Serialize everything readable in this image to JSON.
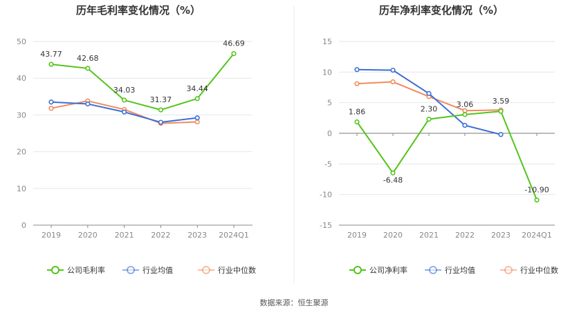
{
  "colors": {
    "company": "#52c41a",
    "industry_avg": "#3b6fd4",
    "industry_median": "#f08a5d"
  },
  "legend": {
    "industry_avg": "行业均值",
    "industry_median": "行业中位数"
  },
  "source": "数据来源：恒生聚源",
  "chart_data": [
    {
      "type": "line",
      "title": "历年毛利率变化情况（%）",
      "x": [
        "2019",
        "2020",
        "2021",
        "2022",
        "2023",
        "2024Q1"
      ],
      "ylim": [
        0,
        50
      ],
      "yticks": [
        0,
        10,
        20,
        30,
        40,
        50
      ],
      "grid": true,
      "legend_position": "bottom",
      "series": [
        {
          "name": "公司毛利率",
          "key": "company",
          "values": [
            43.77,
            42.68,
            34.03,
            31.37,
            34.44,
            46.69
          ],
          "labels": [
            "43.77",
            "42.68",
            "34.03",
            "31.37",
            "34.44",
            "46.69"
          ]
        },
        {
          "name": "行业均值",
          "key": "industry_avg",
          "values": [
            33.5,
            33.0,
            30.8,
            28.0,
            29.2,
            null
          ]
        },
        {
          "name": "行业中位数",
          "key": "industry_median",
          "values": [
            31.8,
            33.8,
            31.5,
            27.7,
            28.1,
            null
          ]
        }
      ]
    },
    {
      "type": "line",
      "title": "历年净利率变化情况（%）",
      "x": [
        "2019",
        "2020",
        "2021",
        "2022",
        "2023",
        "2024Q1"
      ],
      "ylim": [
        -15,
        15
      ],
      "yticks": [
        -15,
        -10,
        -5,
        0,
        5,
        10,
        15
      ],
      "grid": true,
      "legend_position": "bottom",
      "series": [
        {
          "name": "公司净利率",
          "key": "company",
          "values": [
            1.86,
            -6.48,
            2.3,
            3.06,
            3.59,
            -10.9
          ],
          "labels": [
            "1.86",
            "-6.48",
            "2.30",
            "3.06",
            "3.59",
            "-10.90"
          ]
        },
        {
          "name": "行业均值",
          "key": "industry_avg",
          "values": [
            10.4,
            10.3,
            6.5,
            1.3,
            -0.2,
            null
          ]
        },
        {
          "name": "行业中位数",
          "key": "industry_median",
          "values": [
            8.1,
            8.4,
            6.0,
            3.7,
            3.8,
            null
          ]
        }
      ]
    }
  ]
}
